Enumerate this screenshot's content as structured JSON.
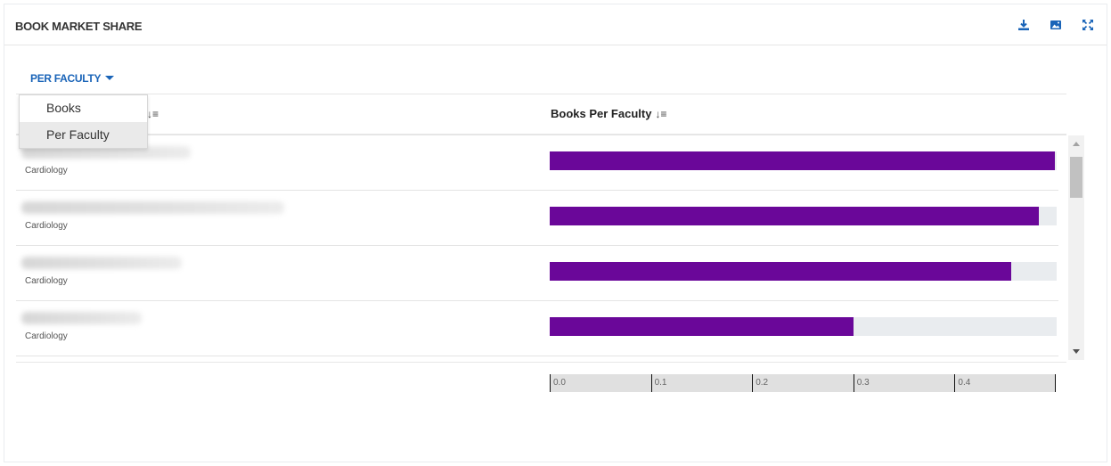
{
  "panel": {
    "title": "BOOK MARKET SHARE",
    "icons": [
      "download-icon",
      "image-icon",
      "expand-icon"
    ],
    "accent_color": "#1a64b8"
  },
  "filter": {
    "label": "PER FACULTY",
    "options": [
      "Books",
      "Per Faculty"
    ],
    "selected": "Per Faculty"
  },
  "table": {
    "column_2_header": "Books Per Faculty",
    "rows": [
      {
        "faculty": "Cardiology",
        "value": 0.498
      },
      {
        "faculty": "Cardiology",
        "value": 0.482
      },
      {
        "faculty": "Cardiology",
        "value": 0.455
      },
      {
        "faculty": "Cardiology",
        "value": 0.3
      }
    ]
  },
  "chart_data": {
    "type": "bar",
    "categories": [
      "Cardiology",
      "Cardiology",
      "Cardiology",
      "Cardiology"
    ],
    "values": [
      0.498,
      0.482,
      0.455,
      0.3
    ],
    "xlim": [
      0,
      0.5
    ],
    "ticks": [
      "0.0",
      "0.1",
      "0.2",
      "0.3",
      "0.4"
    ],
    "bar_color": "#6a0799",
    "track_color": "#e9ecef"
  }
}
